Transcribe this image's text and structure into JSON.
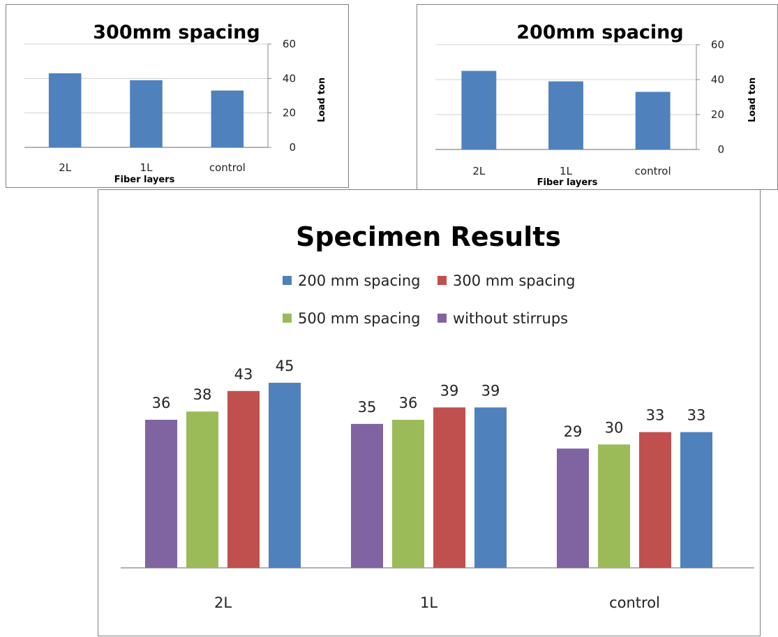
{
  "chart_data": [
    {
      "type": "bar",
      "title": "300mm spacing",
      "categories": [
        "2L",
        "1L",
        "control"
      ],
      "values": [
        43,
        39,
        33
      ],
      "xlabel": "Fiber layers",
      "ylabel": "Load ton",
      "ylim": [
        0,
        60
      ],
      "yticks": [
        0,
        20,
        40,
        60
      ],
      "y_axis_side": "right",
      "grid": true,
      "bar_color": "#4f81bd"
    },
    {
      "type": "bar",
      "title": "200mm spacing",
      "categories": [
        "2L",
        "1L",
        "control"
      ],
      "values": [
        45,
        39,
        33
      ],
      "xlabel": "Fiber layers",
      "ylabel": "Load ton",
      "ylim": [
        0,
        60
      ],
      "yticks": [
        0,
        20,
        40,
        60
      ],
      "y_axis_side": "right",
      "grid": true,
      "bar_color": "#4f81bd"
    },
    {
      "type": "bar",
      "title": "Specimen Results",
      "categories": [
        "2L",
        "1L",
        "control"
      ],
      "series": [
        {
          "name": "without stirrups",
          "color": "#8064a2",
          "values": [
            36,
            35,
            29
          ]
        },
        {
          "name": "500 mm spacing",
          "color": "#9bbb59",
          "values": [
            38,
            36,
            30
          ]
        },
        {
          "name": "300 mm spacing",
          "color": "#c0504d",
          "values": [
            43,
            39,
            33
          ]
        },
        {
          "name": "200 mm spacing",
          "color": "#4f81bd",
          "values": [
            45,
            39,
            33
          ]
        }
      ],
      "legend_order": [
        "200 mm spacing",
        "300 mm spacing",
        "500 mm spacing",
        "without stirrups"
      ],
      "legend_position": "top",
      "data_labels": true,
      "ylim": [
        0,
        50
      ],
      "grid": false
    }
  ]
}
